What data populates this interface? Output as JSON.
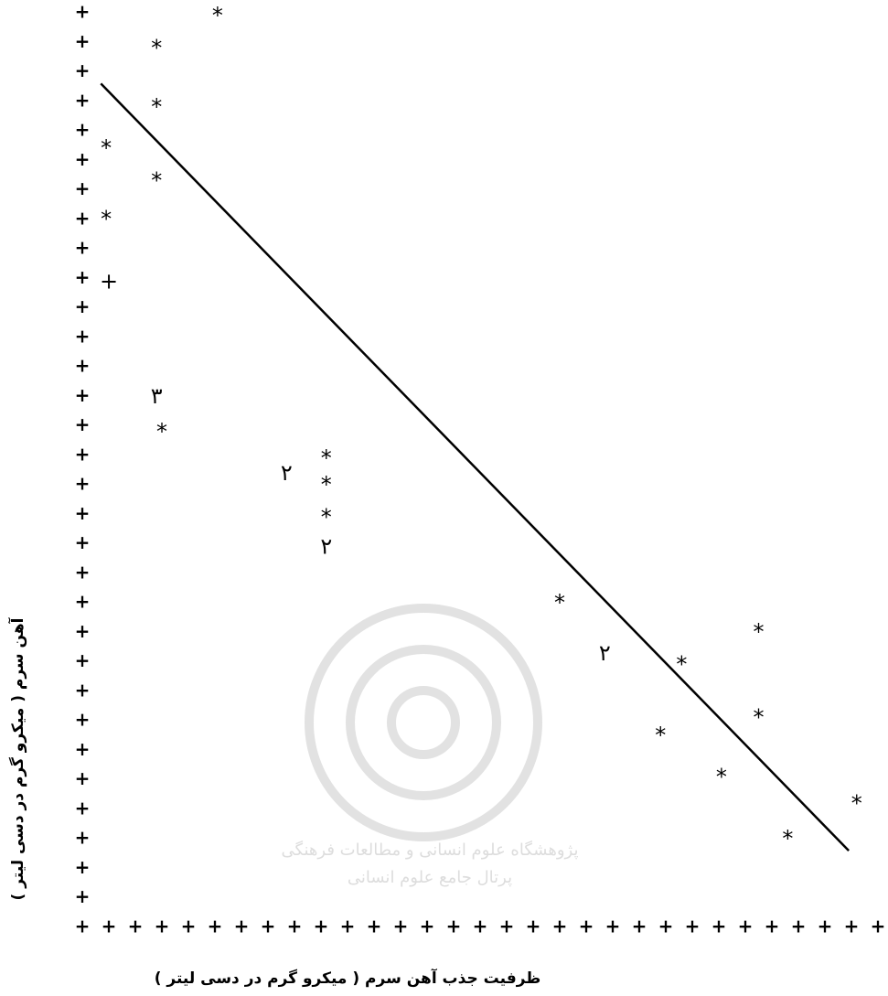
{
  "chart_data": {
    "type": "scatter",
    "x_label": "ظرفیت جذب آهن سرم ( میکرو گرم در دسی لیتر )",
    "y_label": "آهن سرم ( میکرو گرم در دسی لیتر )",
    "x": [
      5.1,
      2.8,
      2.8,
      0.9,
      2.8,
      0.9,
      1.0,
      2.8,
      3.0,
      7.7,
      9.2,
      9.2,
      9.2,
      9.2,
      18.0,
      25.5,
      19.7,
      22.6,
      25.5,
      21.8,
      24.1,
      29.2,
      26.6
    ],
    "values": [
      31.0,
      29.9,
      27.9,
      26.5,
      25.4,
      24.1,
      22.0,
      18.1,
      16.9,
      15.5,
      16.0,
      15.1,
      14.0,
      13.0,
      11.1,
      10.1,
      9.4,
      9.0,
      7.2,
      6.6,
      5.2,
      4.3,
      3.1
    ],
    "markers": [
      "*",
      "*",
      "*",
      "*",
      "*",
      "*",
      "+",
      "۳",
      "*",
      "۲",
      "*",
      "*",
      "*",
      "۲",
      "*",
      "*",
      "۲",
      "*",
      "*",
      "*",
      "*",
      "*",
      "*"
    ],
    "trend_line": {
      "x": [
        0.7,
        28.9
      ],
      "values": [
        28.6,
        2.6
      ]
    },
    "color": "#000000",
    "xlim": [
      0,
      30
    ],
    "ylim": [
      0,
      31
    ],
    "xticks": [
      {
        "value": 0,
        "label": "+"
      },
      {
        "value": 1,
        "label": "+"
      },
      {
        "value": 2,
        "label": "+"
      },
      {
        "value": 3,
        "label": "+"
      },
      {
        "value": 4,
        "label": "+"
      },
      {
        "value": 5,
        "label": "+"
      },
      {
        "value": 6,
        "label": "+"
      },
      {
        "value": 7,
        "label": "+"
      },
      {
        "value": 8,
        "label": "+"
      },
      {
        "value": 9,
        "label": "+"
      },
      {
        "value": 10,
        "label": "+"
      },
      {
        "value": 11,
        "label": "+"
      },
      {
        "value": 12,
        "label": "+"
      },
      {
        "value": 13,
        "label": "+"
      },
      {
        "value": 14,
        "label": "+"
      },
      {
        "value": 15,
        "label": "+"
      },
      {
        "value": 16,
        "label": "+"
      },
      {
        "value": 17,
        "label": "+"
      },
      {
        "value": 18,
        "label": "+"
      },
      {
        "value": 19,
        "label": "+"
      },
      {
        "value": 20,
        "label": "+"
      },
      {
        "value": 21,
        "label": "+"
      },
      {
        "value": 22,
        "label": "+"
      },
      {
        "value": 23,
        "label": "+"
      },
      {
        "value": 24,
        "label": "+"
      },
      {
        "value": 25,
        "label": "+"
      },
      {
        "value": 26,
        "label": "+"
      },
      {
        "value": 27,
        "label": "+"
      },
      {
        "value": 28,
        "label": "+"
      },
      {
        "value": 29,
        "label": "+"
      },
      {
        "value": 30,
        "label": "+"
      }
    ],
    "yticks": [
      {
        "value": 1,
        "label": "+"
      },
      {
        "value": 2,
        "label": "+"
      },
      {
        "value": 3,
        "label": "+"
      },
      {
        "value": 4,
        "label": "+"
      },
      {
        "value": 5,
        "label": "+"
      },
      {
        "value": 6,
        "label": "+"
      },
      {
        "value": 7,
        "label": "+"
      },
      {
        "value": 8,
        "label": "+"
      },
      {
        "value": 9,
        "label": "+"
      },
      {
        "value": 10,
        "label": "+"
      },
      {
        "value": 11,
        "label": "+"
      },
      {
        "value": 12,
        "label": "+"
      },
      {
        "value": 13,
        "label": "+"
      },
      {
        "value": 14,
        "label": "+"
      },
      {
        "value": 15,
        "label": "+"
      },
      {
        "value": 16,
        "label": "+"
      },
      {
        "value": 17,
        "label": "+"
      },
      {
        "value": 18,
        "label": "+"
      },
      {
        "value": 19,
        "label": "+"
      },
      {
        "value": 20,
        "label": "+"
      },
      {
        "value": 21,
        "label": "+"
      },
      {
        "value": 22,
        "label": "+"
      },
      {
        "value": 23,
        "label": "+"
      },
      {
        "value": 24,
        "label": "+"
      },
      {
        "value": 25,
        "label": "+"
      },
      {
        "value": 26,
        "label": "+"
      },
      {
        "value": 27,
        "label": "+"
      },
      {
        "value": 28,
        "label": "+"
      },
      {
        "value": 29,
        "label": "+"
      },
      {
        "value": 30,
        "label": "+"
      },
      {
        "value": 31,
        "label": "+"
      }
    ],
    "watermark": [
      "پژوهشگاه علوم انسانی و مطالعات فرهنگی",
      "پرتال جامع علوم انسانی"
    ]
  }
}
